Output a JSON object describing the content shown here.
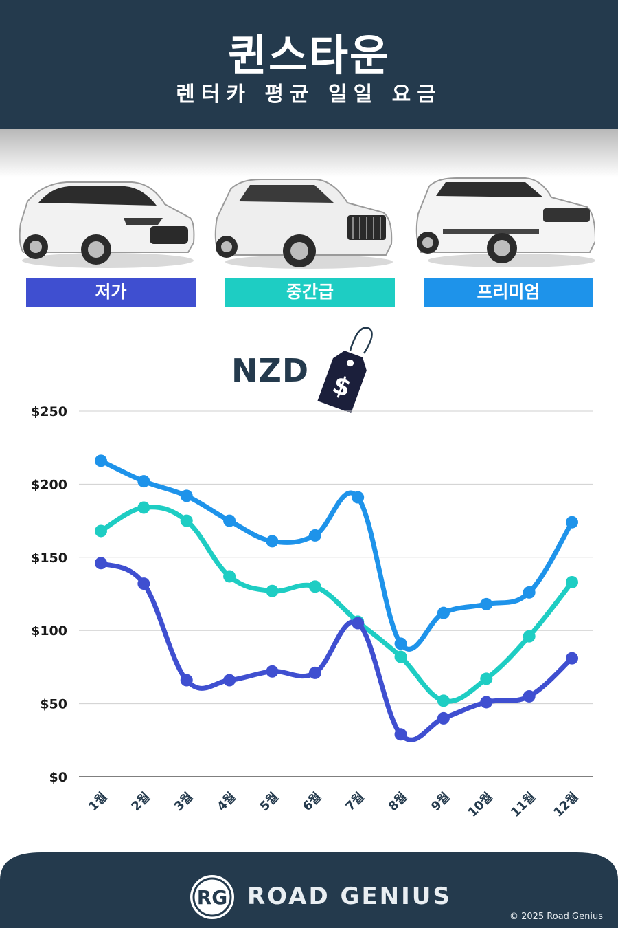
{
  "header": {
    "title": "퀸스타운",
    "subtitle": "렌터카 평균 일일 요금"
  },
  "categories": [
    {
      "label": "저가",
      "color": "#3f4fd0"
    },
    {
      "label": "중간급",
      "color": "#1ecdc3"
    },
    {
      "label": "프리미엄",
      "color": "#1e93ea"
    }
  ],
  "currency": {
    "label": "NZD",
    "tag_symbol": "$"
  },
  "chart_data": {
    "type": "line",
    "categories": [
      "1월",
      "2월",
      "3월",
      "4월",
      "5월",
      "6월",
      "7월",
      "8월",
      "9월",
      "10월",
      "11월",
      "12월"
    ],
    "series": [
      {
        "name": "프리미엄",
        "color": "#1e93ea",
        "values": [
          216,
          202,
          192,
          175,
          161,
          165,
          191,
          91,
          112,
          118,
          126,
          174
        ]
      },
      {
        "name": "중간급",
        "color": "#1ecdc3",
        "values": [
          168,
          184,
          175,
          137,
          127,
          130,
          106,
          82,
          52,
          67,
          96,
          133
        ]
      },
      {
        "name": "저가",
        "color": "#3f4fd0",
        "values": [
          146,
          132,
          66,
          66,
          72,
          71,
          105,
          29,
          40,
          51,
          55,
          81
        ]
      }
    ],
    "ylim": [
      0,
      250
    ],
    "yticks": [
      0,
      50,
      100,
      150,
      200,
      250
    ],
    "ytick_labels": [
      "$0",
      "$50",
      "$100",
      "$150",
      "$200",
      "$250"
    ],
    "grid": true
  },
  "footer": {
    "brand": "ROAD GENIUS",
    "logo_text": "RG",
    "copyright": "© 2025 Road Genius"
  }
}
